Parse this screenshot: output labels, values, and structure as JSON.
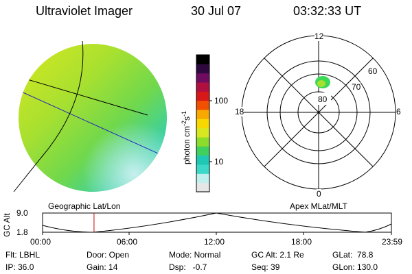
{
  "header": {
    "instrument": "Ultraviolet Imager",
    "date": "30 Jul 07",
    "time": "03:32:33 UT"
  },
  "colorbar": {
    "unit_label": "photon cm",
    "unit_exp1": "-2",
    "unit_s": "s",
    "unit_exp2": "-1",
    "tick_high": "100",
    "tick_low": "10",
    "colors": [
      "#e6e6e6",
      "#c0f0ee",
      "#3cd8c8",
      "#1ec8b4",
      "#40d060",
      "#8cdc2c",
      "#d8e820",
      "#f8d800",
      "#f8a800",
      "#f05000",
      "#d81818",
      "#b01040",
      "#700c60",
      "#300840",
      "#000000"
    ]
  },
  "polar_plot": {
    "mlt_labels": {
      "top": "12",
      "bottom": "0",
      "left": "18",
      "right": "6"
    },
    "lat_labels": {
      "ring60": "60",
      "ring70": "70",
      "ring80": "80"
    }
  },
  "timeline": {
    "left_caption": "Geographic Lat/Lon",
    "right_caption": "Apex MLat/MLT",
    "axis_label": "GC Alt",
    "y_max": "9.0",
    "y_min": "1.8",
    "ticks": [
      "00:00",
      "06:00",
      "12:00",
      "18:00",
      "23:59"
    ],
    "marker_time_hours": 3.54
  },
  "status": {
    "flt": "Flt: LBHL",
    "ip": "IP: 36.0",
    "door": "Door: Open",
    "gain": "Gain: 14",
    "mode": "Mode: Normal",
    "dsp": "Dsp:   -0.7",
    "gc_alt": "GC Alt: 2.1 Re",
    "seq": "Seq: 39",
    "glat": "GLat:  78.8",
    "glon": "GLon: 130.0"
  }
}
